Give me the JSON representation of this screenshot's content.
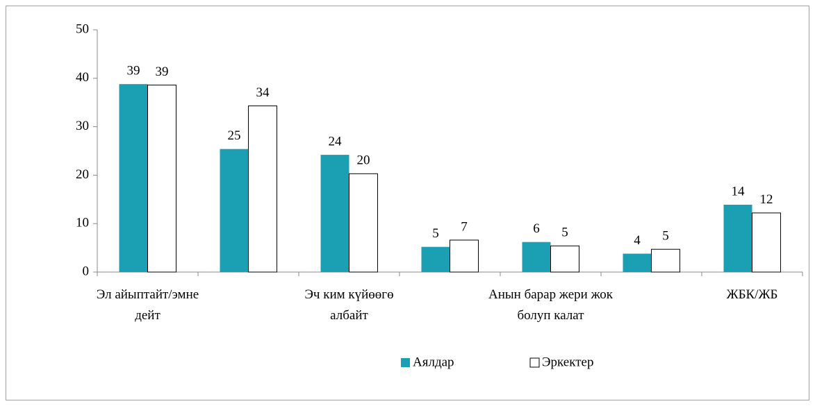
{
  "chart_data": {
    "type": "bar",
    "categories": [
      "Эл айыптайт/эмне\nдейт",
      null,
      "Эч ким күйөөгө\nалбайт",
      null,
      "Анын барар жери жок\nболуп калат",
      null,
      "ЖБК/ЖБ"
    ],
    "series": [
      {
        "name": "Аялдар",
        "color": "#1b9fb2",
        "values": [
          38.8,
          25.4,
          24.2,
          5.2,
          6.2,
          3.8,
          13.9
        ],
        "value_labels": [
          39,
          25,
          24,
          5,
          6,
          4,
          14
        ]
      },
      {
        "name": "Эркектер",
        "color": "#ffffff",
        "values": [
          38.6,
          34.3,
          20.3,
          6.6,
          5.4,
          4.7,
          12.2
        ],
        "value_labels": [
          39,
          34,
          20,
          7,
          5,
          5,
          12
        ]
      }
    ],
    "ylim": [
      0,
      50
    ],
    "yticks": [
      0,
      10,
      20,
      30,
      40,
      50
    ],
    "grid": false,
    "legend": "bottom"
  }
}
